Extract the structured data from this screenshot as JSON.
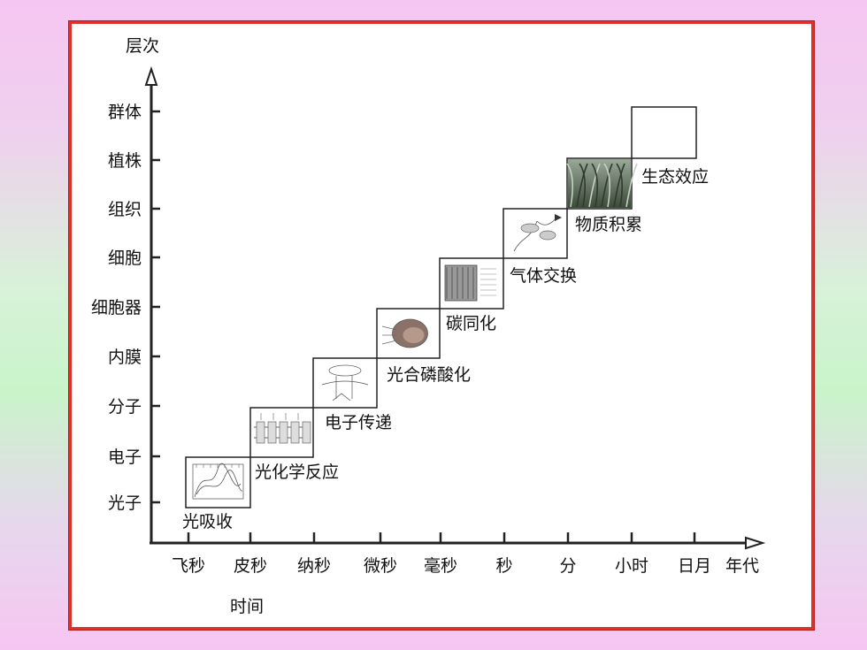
{
  "y_axis": {
    "title": "层次",
    "levels": [
      "光子",
      "电子",
      "分子",
      "内膜",
      "细胞器",
      "细胞",
      "组织",
      "植株",
      "群体"
    ]
  },
  "x_axis": {
    "title_right": "年代",
    "title_bottom": "时间",
    "ticks": [
      "飞秒",
      "皮秒",
      "纳秒",
      "微秒",
      "毫秒",
      "秒",
      "分",
      "小时",
      "日月"
    ]
  },
  "steps": [
    {
      "label": "光吸收",
      "thumbnail": "absorption-spectrum"
    },
    {
      "label": "光化学反应",
      "thumbnail": "reaction-center"
    },
    {
      "label": "电子传递",
      "thumbnail": "membrane-transport"
    },
    {
      "label": "光合磷酸化",
      "thumbnail": "atp-synthesis"
    },
    {
      "label": "碳同化",
      "thumbnail": "calvin-cycle"
    },
    {
      "label": "气体交换",
      "thumbnail": "chloroplast"
    },
    {
      "label": "物质积累",
      "thumbnail": "leaf-tissue"
    },
    {
      "label": "生态效应",
      "thumbnail": "plant-diagram"
    },
    {
      "thumbnail": "crop-canopy-photo"
    }
  ],
  "colors": {
    "frame_border": "#e0302a",
    "axis": "#222222"
  }
}
